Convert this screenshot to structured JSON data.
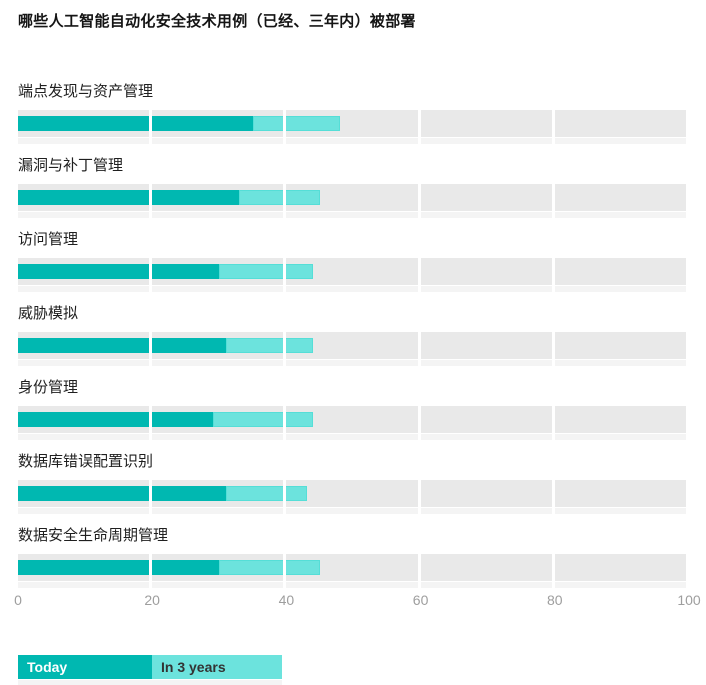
{
  "title": "哪些人工智能自动化安全技术用例（已经、三年内）被部署",
  "chart_data": {
    "type": "bar",
    "orientation": "horizontal",
    "stacked": true,
    "title": "哪些人工智能自动化安全技术用例（已经、三年内）被部署",
    "categories": [
      "端点发现与资产管理",
      "漏洞与补丁管理",
      "访问管理",
      "威胁模拟",
      "身份管理",
      "数据库错误配置识别",
      "数据安全生命周期管理"
    ],
    "series": [
      {
        "name": "Today",
        "color": "#00b8b1",
        "values": [
          35,
          33,
          30,
          31,
          29,
          31,
          30
        ]
      },
      {
        "name": "In 3 years",
        "color": "#6ce3dd",
        "values": [
          13,
          12,
          14,
          13,
          15,
          12,
          15
        ]
      }
    ],
    "totals": [
      48,
      45,
      44,
      44,
      44,
      43,
      45
    ],
    "xlabel": "",
    "ylabel": "",
    "xlim": [
      0,
      100
    ],
    "x_ticks": [
      0,
      20,
      40,
      60,
      80,
      100
    ],
    "grid": "segmented-track",
    "track_color": "#e9e9e9",
    "legend_position": "bottom-left"
  },
  "legend": {
    "today_label": "Today",
    "in3_label": "In 3 years"
  }
}
